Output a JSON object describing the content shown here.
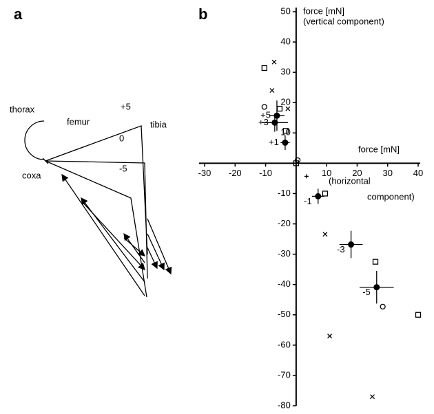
{
  "panel_a": {
    "label": "a",
    "thorax": "thorax",
    "coxa": "coxa",
    "femur": "femur",
    "tibia": "tibia",
    "angles": [
      "+5",
      "0",
      "-5"
    ]
  },
  "chart_data": {
    "type": "scatter",
    "panel_label": "b",
    "y_axis_label": [
      "force [mN]",
      "(vertical component)"
    ],
    "x_axis_label": [
      "force [mN]",
      "(horizontal",
      "component)"
    ],
    "xlim": [
      -30,
      40
    ],
    "ylim": [
      -80,
      50
    ],
    "xticks": [
      -30,
      -20,
      -10,
      10,
      20,
      30,
      40
    ],
    "yticks": [
      50,
      40,
      30,
      20,
      10,
      -10,
      -20,
      -30,
      -40,
      -50,
      -60,
      -70,
      -80
    ],
    "color": "#000000",
    "series": [
      {
        "marker": "x",
        "x": [
          -7.2,
          -7.9,
          -2.7,
          9.5,
          11,
          25
        ],
        "y": [
          33.4,
          24,
          18,
          -23.4,
          -57,
          -77
        ]
      },
      {
        "marker": "square",
        "x": [
          -10.4,
          -5.4,
          -3.4,
          9.5,
          26,
          40,
          0
        ],
        "y": [
          31.4,
          18,
          10.7,
          -10,
          -32.5,
          -50,
          0
        ]
      },
      {
        "marker": "circle",
        "x": [
          -10.4,
          28.4,
          0.5
        ],
        "y": [
          18.6,
          -47.3,
          1
        ]
      },
      {
        "marker": "plus",
        "x": [
          3.4
        ],
        "y": [
          -4.3
        ]
      },
      {
        "marker": "filled",
        "labels": [
          "+5",
          "+3",
          "+1",
          "-1",
          "-3",
          "-5"
        ],
        "x": [
          -6.3,
          -7,
          -3.6,
          7.2,
          18,
          26.4
        ],
        "y": [
          15.7,
          13.4,
          6.8,
          -10.9,
          -26.8,
          -40.9
        ],
        "xerr": [
          2.5,
          4.3,
          1.5,
          2,
          3.8,
          5.6
        ],
        "yerr": [
          5,
          3,
          2.4,
          2.5,
          4.5,
          5.4
        ]
      }
    ]
  }
}
